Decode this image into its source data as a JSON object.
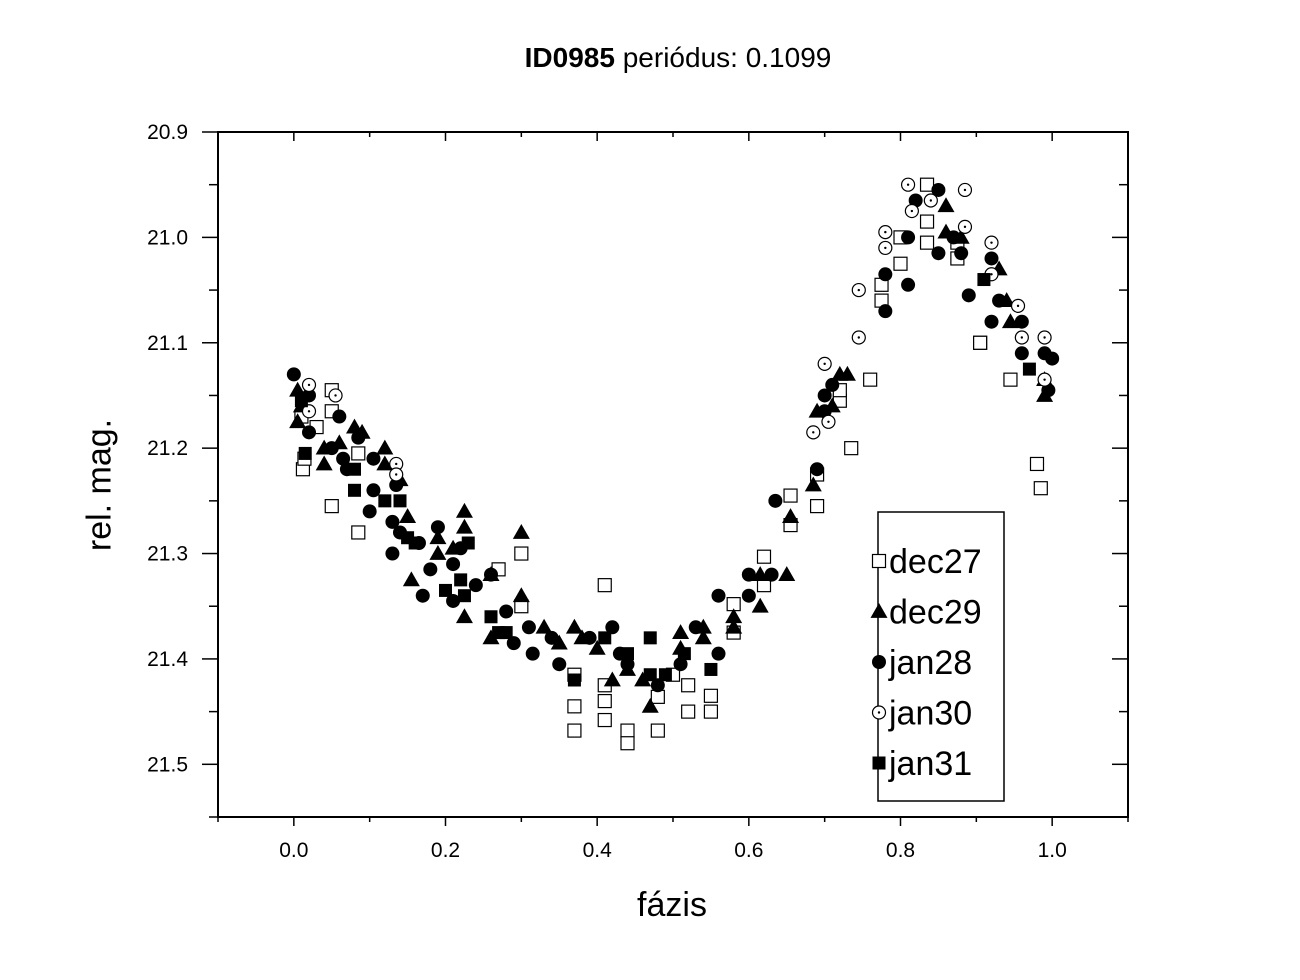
{
  "title": {
    "id": "ID0985",
    "rest": "periódus: 0.1099"
  },
  "chart_data": {
    "type": "scatter",
    "title": "ID0985 periódus: 0.1099",
    "xlabel": "fázis",
    "ylabel": "rel. mag.",
    "xlim": [
      -0.1,
      1.1
    ],
    "ylim": [
      21.55,
      20.9
    ],
    "y_inverted": true,
    "x_ticks": [
      "0.0",
      "0.2",
      "0.4",
      "0.6",
      "0.8",
      "1.0"
    ],
    "y_ticks": [
      "20.9",
      "21.0",
      "21.1",
      "21.2",
      "21.3",
      "21.4",
      "21.5"
    ],
    "legend_position": "lower-right inside plot",
    "series": [
      {
        "name": "dec27",
        "marker": "open-square",
        "points": [
          [
            0.01,
            21.17
          ],
          [
            0.012,
            21.22
          ],
          [
            0.014,
            21.21
          ],
          [
            0.03,
            21.18
          ],
          [
            0.05,
            21.145
          ],
          [
            0.05,
            21.165
          ],
          [
            0.05,
            21.255
          ],
          [
            0.085,
            21.28
          ],
          [
            0.085,
            21.205
          ],
          [
            0.3,
            21.3
          ],
          [
            0.3,
            21.35
          ],
          [
            0.27,
            21.315
          ],
          [
            0.41,
            21.33
          ],
          [
            0.37,
            21.415
          ],
          [
            0.37,
            21.445
          ],
          [
            0.37,
            21.468
          ],
          [
            0.41,
            21.425
          ],
          [
            0.41,
            21.44
          ],
          [
            0.41,
            21.458
          ],
          [
            0.44,
            21.468
          ],
          [
            0.44,
            21.48
          ],
          [
            0.48,
            21.436
          ],
          [
            0.48,
            21.468
          ],
          [
            0.5,
            21.415
          ],
          [
            0.52,
            21.425
          ],
          [
            0.52,
            21.45
          ],
          [
            0.55,
            21.435
          ],
          [
            0.55,
            21.45
          ],
          [
            0.58,
            21.375
          ],
          [
            0.58,
            21.348
          ],
          [
            0.62,
            21.33
          ],
          [
            0.62,
            21.303
          ],
          [
            0.655,
            21.273
          ],
          [
            0.655,
            21.245
          ],
          [
            0.69,
            21.255
          ],
          [
            0.69,
            21.225
          ],
          [
            0.72,
            21.155
          ],
          [
            0.72,
            21.145
          ],
          [
            0.735,
            21.2
          ],
          [
            0.76,
            21.135
          ],
          [
            0.775,
            21.06
          ],
          [
            0.775,
            21.045
          ],
          [
            0.8,
            21.025
          ],
          [
            0.8,
            21.0
          ],
          [
            0.835,
            20.95
          ],
          [
            0.835,
            20.985
          ],
          [
            0.835,
            21.005
          ],
          [
            0.875,
            21.02
          ],
          [
            0.875,
            21.005
          ],
          [
            0.905,
            21.1
          ],
          [
            0.945,
            21.135
          ],
          [
            0.98,
            21.215
          ],
          [
            0.985,
            21.238
          ],
          [
            0.905,
            21.1
          ]
        ]
      },
      {
        "name": "dec29",
        "marker": "filled-triangle",
        "points": [
          [
            0.005,
            21.145
          ],
          [
            0.005,
            21.175
          ],
          [
            0.01,
            21.16
          ],
          [
            0.04,
            21.2
          ],
          [
            0.04,
            21.215
          ],
          [
            0.06,
            21.195
          ],
          [
            0.08,
            21.18
          ],
          [
            0.09,
            21.185
          ],
          [
            0.12,
            21.2
          ],
          [
            0.12,
            21.215
          ],
          [
            0.14,
            21.23
          ],
          [
            0.15,
            21.265
          ],
          [
            0.155,
            21.325
          ],
          [
            0.19,
            21.3
          ],
          [
            0.19,
            21.285
          ],
          [
            0.21,
            21.295
          ],
          [
            0.225,
            21.26
          ],
          [
            0.225,
            21.275
          ],
          [
            0.225,
            21.36
          ],
          [
            0.26,
            21.32
          ],
          [
            0.26,
            21.38
          ],
          [
            0.3,
            21.28
          ],
          [
            0.3,
            21.34
          ],
          [
            0.33,
            21.37
          ],
          [
            0.35,
            21.385
          ],
          [
            0.37,
            21.37
          ],
          [
            0.38,
            21.38
          ],
          [
            0.4,
            21.39
          ],
          [
            0.42,
            21.42
          ],
          [
            0.44,
            21.41
          ],
          [
            0.46,
            21.42
          ],
          [
            0.47,
            21.445
          ],
          [
            0.51,
            21.39
          ],
          [
            0.51,
            21.375
          ],
          [
            0.54,
            21.38
          ],
          [
            0.54,
            21.37
          ],
          [
            0.58,
            21.36
          ],
          [
            0.58,
            21.37
          ],
          [
            0.615,
            21.35
          ],
          [
            0.615,
            21.32
          ],
          [
            0.65,
            21.32
          ],
          [
            0.655,
            21.265
          ],
          [
            0.685,
            21.235
          ],
          [
            0.69,
            21.165
          ],
          [
            0.71,
            21.16
          ],
          [
            0.72,
            21.13
          ],
          [
            0.73,
            21.13
          ],
          [
            0.86,
            20.97
          ],
          [
            0.86,
            20.995
          ],
          [
            0.88,
            21.0
          ],
          [
            0.93,
            21.03
          ],
          [
            0.94,
            21.06
          ],
          [
            0.945,
            21.08
          ],
          [
            0.99,
            21.135
          ],
          [
            0.99,
            21.15
          ]
        ]
      },
      {
        "name": "jan28",
        "marker": "filled-circle",
        "points": [
          [
            0.0,
            21.13
          ],
          [
            0.02,
            21.15
          ],
          [
            0.02,
            21.185
          ],
          [
            0.05,
            21.2
          ],
          [
            0.06,
            21.17
          ],
          [
            0.065,
            21.21
          ],
          [
            0.07,
            21.22
          ],
          [
            0.085,
            21.19
          ],
          [
            0.1,
            21.26
          ],
          [
            0.105,
            21.21
          ],
          [
            0.105,
            21.24
          ],
          [
            0.13,
            21.27
          ],
          [
            0.13,
            21.3
          ],
          [
            0.135,
            21.235
          ],
          [
            0.14,
            21.28
          ],
          [
            0.165,
            21.29
          ],
          [
            0.17,
            21.34
          ],
          [
            0.18,
            21.315
          ],
          [
            0.19,
            21.275
          ],
          [
            0.21,
            21.31
          ],
          [
            0.21,
            21.345
          ],
          [
            0.22,
            21.295
          ],
          [
            0.24,
            21.33
          ],
          [
            0.26,
            21.32
          ],
          [
            0.28,
            21.355
          ],
          [
            0.29,
            21.385
          ],
          [
            0.31,
            21.37
          ],
          [
            0.315,
            21.395
          ],
          [
            0.34,
            21.38
          ],
          [
            0.35,
            21.405
          ],
          [
            0.39,
            21.38
          ],
          [
            0.42,
            21.37
          ],
          [
            0.43,
            21.395
          ],
          [
            0.44,
            21.405
          ],
          [
            0.48,
            21.425
          ],
          [
            0.51,
            21.405
          ],
          [
            0.53,
            21.37
          ],
          [
            0.56,
            21.34
          ],
          [
            0.56,
            21.395
          ],
          [
            0.6,
            21.32
          ],
          [
            0.6,
            21.34
          ],
          [
            0.63,
            21.32
          ],
          [
            0.635,
            21.25
          ],
          [
            0.69,
            21.22
          ],
          [
            0.7,
            21.15
          ],
          [
            0.7,
            21.165
          ],
          [
            0.71,
            21.14
          ],
          [
            0.78,
            21.07
          ],
          [
            0.78,
            21.035
          ],
          [
            0.81,
            21.0
          ],
          [
            0.81,
            21.045
          ],
          [
            0.82,
            20.965
          ],
          [
            0.85,
            20.955
          ],
          [
            0.85,
            21.015
          ],
          [
            0.87,
            21.0
          ],
          [
            0.88,
            21.015
          ],
          [
            0.89,
            21.055
          ],
          [
            0.92,
            21.08
          ],
          [
            0.92,
            21.02
          ],
          [
            0.93,
            21.06
          ],
          [
            0.96,
            21.08
          ],
          [
            0.96,
            21.11
          ],
          [
            0.99,
            21.11
          ],
          [
            0.995,
            21.145
          ],
          [
            1.0,
            21.115
          ]
        ]
      },
      {
        "name": "jan30",
        "marker": "dotted-circle",
        "points": [
          [
            0.02,
            21.14
          ],
          [
            0.02,
            21.165
          ],
          [
            0.055,
            21.15
          ],
          [
            0.135,
            21.215
          ],
          [
            0.135,
            21.225
          ],
          [
            0.685,
            21.185
          ],
          [
            0.7,
            21.12
          ],
          [
            0.705,
            21.175
          ],
          [
            0.745,
            21.095
          ],
          [
            0.745,
            21.05
          ],
          [
            0.78,
            20.995
          ],
          [
            0.78,
            21.01
          ],
          [
            0.81,
            20.95
          ],
          [
            0.815,
            20.975
          ],
          [
            0.84,
            20.965
          ],
          [
            0.885,
            20.955
          ],
          [
            0.885,
            20.99
          ],
          [
            0.92,
            21.005
          ],
          [
            0.92,
            21.035
          ],
          [
            0.955,
            21.065
          ],
          [
            0.96,
            21.095
          ],
          [
            0.99,
            21.095
          ],
          [
            0.99,
            21.135
          ]
        ]
      },
      {
        "name": "jan31",
        "marker": "filled-square",
        "points": [
          [
            0.01,
            21.155
          ],
          [
            0.015,
            21.205
          ],
          [
            0.08,
            21.22
          ],
          [
            0.08,
            21.24
          ],
          [
            0.12,
            21.25
          ],
          [
            0.14,
            21.25
          ],
          [
            0.15,
            21.285
          ],
          [
            0.16,
            21.29
          ],
          [
            0.2,
            21.335
          ],
          [
            0.22,
            21.325
          ],
          [
            0.225,
            21.34
          ],
          [
            0.23,
            21.29
          ],
          [
            0.26,
            21.36
          ],
          [
            0.27,
            21.375
          ],
          [
            0.28,
            21.375
          ],
          [
            0.37,
            21.42
          ],
          [
            0.41,
            21.38
          ],
          [
            0.44,
            21.395
          ],
          [
            0.47,
            21.38
          ],
          [
            0.47,
            21.415
          ],
          [
            0.49,
            21.415
          ],
          [
            0.515,
            21.395
          ],
          [
            0.55,
            21.41
          ],
          [
            0.91,
            21.04
          ],
          [
            0.97,
            21.125
          ]
        ]
      }
    ]
  }
}
